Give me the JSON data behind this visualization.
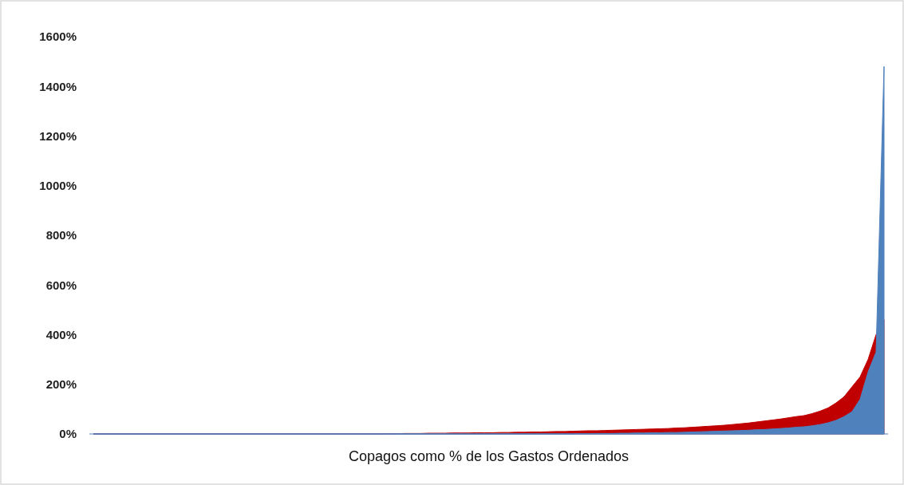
{
  "chart_data": {
    "type": "area",
    "xlabel": "Copagos como % de los Gastos Ordenados",
    "categories": [
      null,
      null,
      null,
      null,
      null,
      null,
      null,
      null,
      null,
      null,
      null,
      null,
      null,
      null,
      null,
      null,
      null,
      null,
      null,
      null,
      null,
      null,
      null,
      null,
      null,
      null,
      null,
      null,
      null,
      null,
      null,
      null,
      null,
      null,
      null,
      null,
      null,
      null,
      null,
      null,
      null,
      null,
      null,
      null,
      null,
      null,
      null,
      null,
      null,
      null,
      null,
      null,
      null,
      null,
      null,
      null,
      null,
      null,
      null,
      null,
      null,
      null,
      null,
      null,
      null,
      null,
      null,
      null,
      null,
      null,
      null,
      null,
      null,
      null,
      null,
      null,
      null,
      null,
      null,
      null,
      null,
      null,
      null,
      null,
      null,
      null,
      null,
      null,
      null,
      null,
      null,
      null,
      null,
      null,
      null,
      null,
      null,
      null,
      null,
      null
    ],
    "series": [
      {
        "color": "#c00000",
        "values": [
          0,
          0,
          0,
          0,
          0,
          0,
          0,
          0,
          0,
          0,
          0,
          0,
          0,
          0,
          0,
          0,
          0,
          0,
          0,
          0,
          0,
          0,
          0,
          0,
          0,
          0,
          0,
          0,
          0,
          0,
          0,
          0,
          0,
          0,
          0,
          0,
          0,
          1,
          1,
          2,
          2,
          2,
          3,
          3,
          3,
          4,
          4,
          4,
          5,
          5,
          5,
          6,
          6,
          7,
          7,
          8,
          8,
          9,
          10,
          10,
          11,
          12,
          13,
          13,
          14,
          15,
          16,
          17,
          18,
          19,
          20,
          21,
          22,
          24,
          25,
          27,
          29,
          31,
          33,
          35,
          38,
          41,
          44,
          48,
          52,
          56,
          60,
          65,
          70,
          74,
          82,
          92,
          105,
          125,
          150,
          190,
          230,
          300,
          400,
          460
        ]
      },
      {
        "color": "#4f81bd",
        "values": [
          0,
          0,
          0,
          0,
          0,
          0,
          0,
          0,
          0,
          0,
          0,
          0,
          0,
          0,
          0,
          0,
          0,
          0,
          0,
          0,
          0,
          0,
          0,
          0,
          0,
          0,
          0,
          0,
          0,
          0,
          0,
          0,
          0,
          0,
          0,
          0,
          0,
          0,
          0,
          0,
          0,
          0,
          0,
          0,
          0,
          0,
          0,
          0,
          0,
          0,
          0,
          0,
          0,
          0,
          0,
          0,
          0,
          0,
          0,
          0,
          0,
          1,
          1,
          2,
          2,
          2,
          3,
          3,
          4,
          4,
          5,
          5,
          6,
          6,
          7,
          8,
          9,
          10,
          11,
          12,
          13,
          14,
          15,
          17,
          18,
          20,
          22,
          24,
          27,
          29,
          33,
          38,
          45,
          55,
          70,
          90,
          140,
          250,
          330,
          1480
        ]
      }
    ],
    "ylim": [
      0,
      1600
    ],
    "yticks": [
      {
        "value": 0,
        "label": "0%"
      },
      {
        "value": 200,
        "label": "200%"
      },
      {
        "value": 400,
        "label": "400%"
      },
      {
        "value": 600,
        "label": "600%"
      },
      {
        "value": 800,
        "label": "800%"
      },
      {
        "value": 1000,
        "label": "1000%"
      },
      {
        "value": 1200,
        "label": "1200%"
      },
      {
        "value": 1400,
        "label": "1400%"
      },
      {
        "value": 1600,
        "label": "1600%"
      }
    ],
    "grid": false
  }
}
